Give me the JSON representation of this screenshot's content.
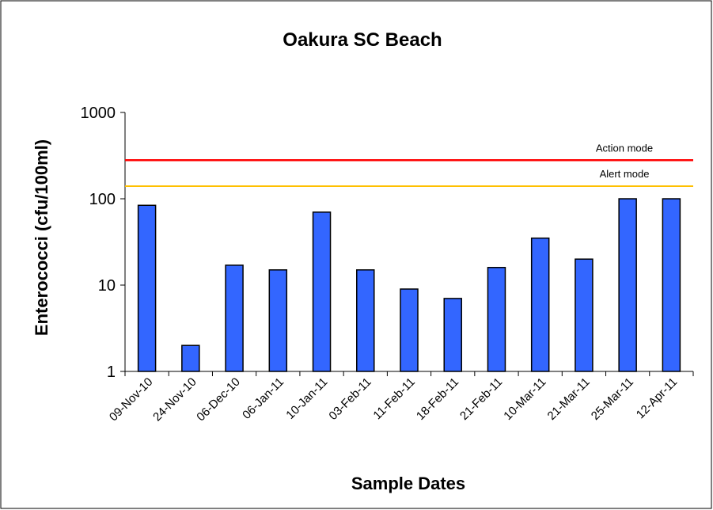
{
  "chart_data": {
    "type": "bar",
    "title": "Oakura SC Beach",
    "x_label": "Sample Dates",
    "y_label": "Enterococci (cfu/100ml)",
    "categories": [
      "09-Nov-10",
      "24-Nov-10",
      "06-Dec-10",
      "06-Jan-11",
      "10-Jan-11",
      "03-Feb-11",
      "11-Feb-11",
      "18-Feb-11",
      "21-Feb-11",
      "10-Mar-11",
      "21-Mar-11",
      "25-Mar-11",
      "12-Apr-11"
    ],
    "values": [
      84,
      2,
      17,
      15,
      70,
      15,
      9,
      7,
      16,
      35,
      20,
      100,
      100
    ],
    "color": "#3366ff",
    "log_scale": true,
    "ylim": [
      1,
      1000
    ],
    "yticks": [
      1,
      10,
      100,
      1000
    ],
    "reference_lines": [
      {
        "label": "Action mode",
        "value": 280,
        "color": "#ff0000"
      },
      {
        "label": "Alert mode",
        "value": 140,
        "color": "#ffc000"
      }
    ]
  }
}
